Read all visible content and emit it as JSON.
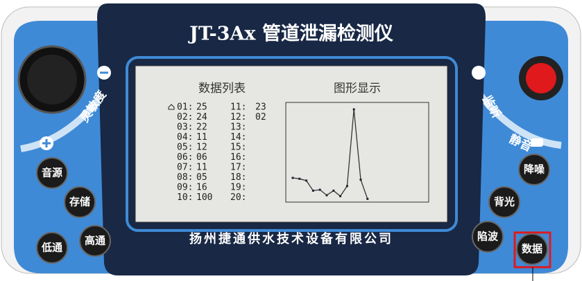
{
  "device": {
    "title": "JT-3Ax 管道泄漏检测仪",
    "company": "扬州捷通供水技术设备有限公司",
    "left_label": "灵敏度",
    "right_labels": [
      "监听",
      "静音"
    ],
    "buttons": [
      "音源",
      "存储",
      "高通",
      "低通",
      "降噪",
      "背光",
      "陷波",
      "数据"
    ]
  },
  "screen": {
    "list_title": "数据列表",
    "graph_title": "图形显示",
    "rows": [
      {
        "index": "01:",
        "value": "25"
      },
      {
        "index": "02:",
        "value": "24"
      },
      {
        "index": "03:",
        "value": "22"
      },
      {
        "index": "04:",
        "value": "11"
      },
      {
        "index": "05:",
        "value": "12"
      },
      {
        "index": "06:",
        "value": "06"
      },
      {
        "index": "07:",
        "value": "11"
      },
      {
        "index": "08:",
        "value": "05"
      },
      {
        "index": "09:",
        "value": "16"
      },
      {
        "index": "10:",
        "value": "100"
      },
      {
        "index": "11:",
        "value": "23"
      },
      {
        "index": "12:",
        "value": "02"
      },
      {
        "index": "13:"
      },
      {
        "index": "14:"
      },
      {
        "index": "15:"
      },
      {
        "index": "16:"
      },
      {
        "index": "17:"
      },
      {
        "index": "18:"
      },
      {
        "index": "19:"
      },
      {
        "index": "20:"
      }
    ]
  }
}
